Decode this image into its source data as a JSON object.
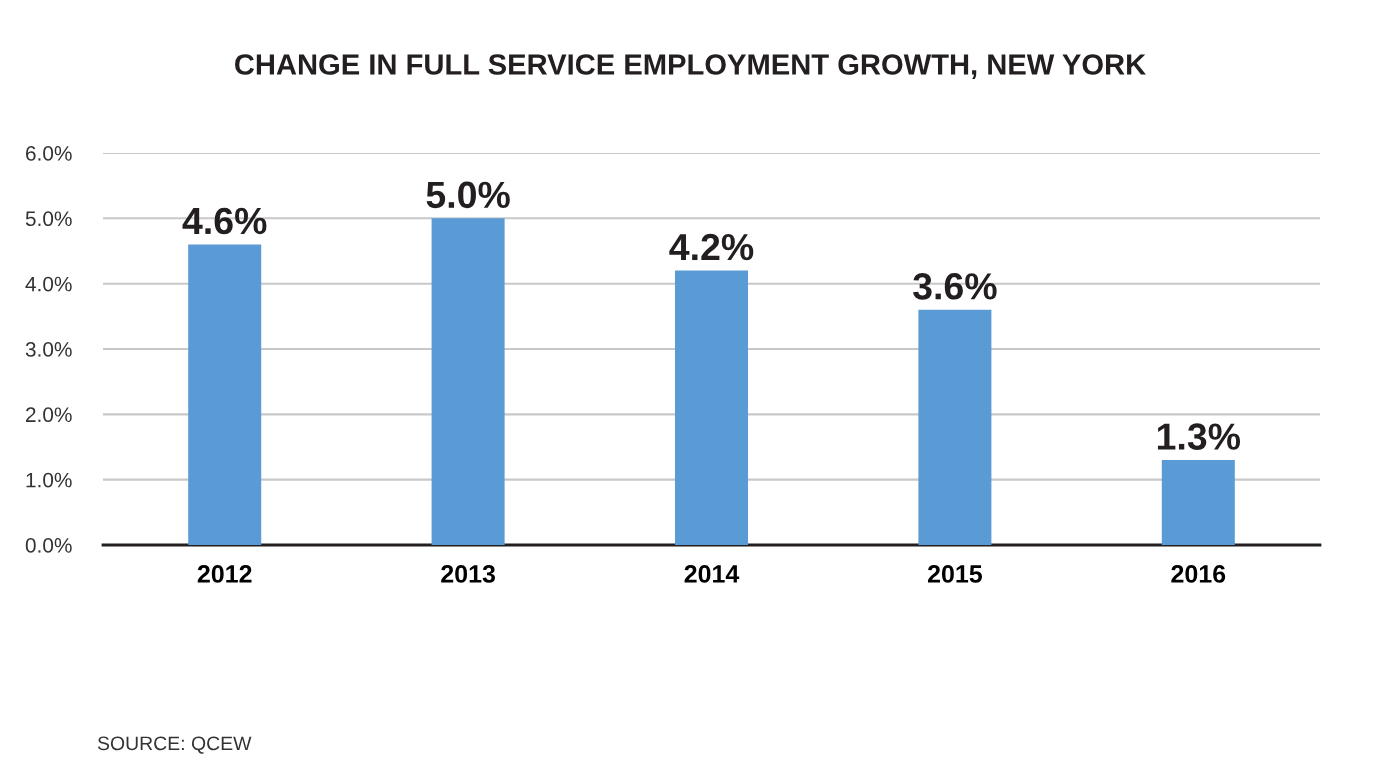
{
  "chart_data": {
    "type": "bar",
    "title": "CHANGE IN FULL SERVICE EMPLOYMENT GROWTH, NEW YORK",
    "categories": [
      "2012",
      "2013",
      "2014",
      "2015",
      "2016"
    ],
    "values": [
      4.6,
      5.0,
      4.2,
      3.6,
      1.3
    ],
    "value_labels": [
      "4.6%",
      "5.0%",
      "4.2%",
      "3.6%",
      "1.3%"
    ],
    "color": "#5b9bd5",
    "ylim": [
      0,
      6
    ],
    "yticks": [
      {
        "value": 0,
        "label": "0.0%"
      },
      {
        "value": 1,
        "label": "1.0%"
      },
      {
        "value": 2,
        "label": "2.0%"
      },
      {
        "value": 3,
        "label": "3.0%"
      },
      {
        "value": 4,
        "label": "4.0%"
      },
      {
        "value": 5,
        "label": "5.0%"
      },
      {
        "value": 6,
        "label": "6.0%"
      }
    ],
    "grid": "y",
    "annotations": [
      "SOURCE: QCEW"
    ]
  }
}
